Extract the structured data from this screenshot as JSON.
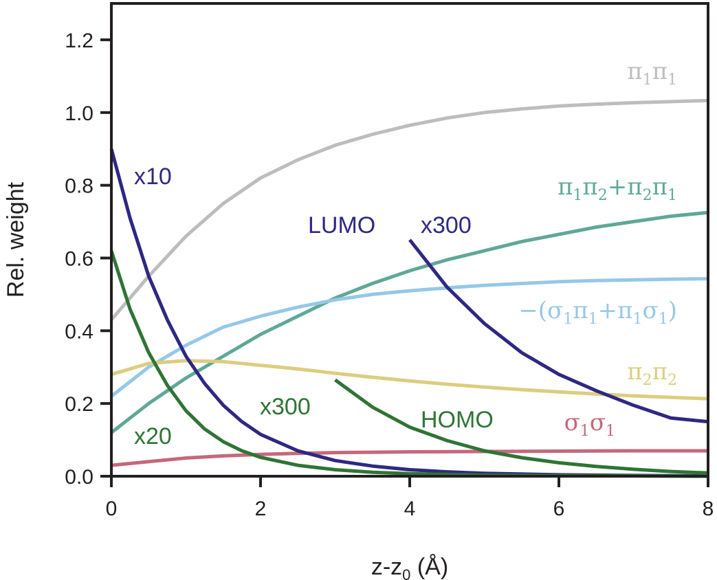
{
  "chart_data": {
    "type": "line",
    "title": "",
    "xlabel": {
      "main": "z-z",
      "sub": "0",
      "rest": " (Å)"
    },
    "ylabel": "Rel. weight",
    "xlim": [
      0,
      8
    ],
    "ylim": [
      0,
      1.3
    ],
    "xticks": [
      0,
      2,
      4,
      6,
      8
    ],
    "xtick_labels": [
      "0",
      "2",
      "4",
      "6",
      "8"
    ],
    "yticks": [
      0.0,
      0.2,
      0.4,
      0.6,
      0.8,
      1.0,
      1.2
    ],
    "ytick_labels": [
      "0.0",
      "0.2",
      "0.4",
      "0.6",
      "0.8",
      "1.0",
      "1.2"
    ],
    "grid": false,
    "series": [
      {
        "name": "π1π1",
        "color": "#bdbdbd",
        "x": [
          0,
          0.5,
          1,
          1.5,
          2,
          2.5,
          3,
          3.5,
          4,
          4.5,
          5,
          5.5,
          6,
          6.5,
          7,
          7.5,
          8
        ],
        "y": [
          0.43,
          0.55,
          0.66,
          0.75,
          0.82,
          0.87,
          0.91,
          0.94,
          0.965,
          0.985,
          1.0,
          1.01,
          1.018,
          1.023,
          1.027,
          1.03,
          1.033
        ]
      },
      {
        "name": "π1π2+π2π1",
        "color": "#5fa898",
        "x": [
          0,
          0.5,
          1,
          1.5,
          2,
          2.5,
          3,
          3.5,
          4,
          4.5,
          5,
          5.5,
          6,
          6.5,
          7,
          7.5,
          8
        ],
        "y": [
          0.12,
          0.2,
          0.27,
          0.33,
          0.39,
          0.44,
          0.49,
          0.53,
          0.565,
          0.595,
          0.62,
          0.645,
          0.665,
          0.685,
          0.7,
          0.715,
          0.725
        ]
      },
      {
        "name": "−(σ1π1+π1σ1)",
        "color": "#95c8e8",
        "x": [
          0,
          0.5,
          1,
          1.5,
          2,
          2.5,
          3,
          3.5,
          4,
          4.5,
          5,
          5.5,
          6,
          6.5,
          7,
          7.5,
          8
        ],
        "y": [
          0.22,
          0.3,
          0.36,
          0.41,
          0.44,
          0.465,
          0.485,
          0.5,
          0.51,
          0.518,
          0.525,
          0.53,
          0.535,
          0.538,
          0.54,
          0.542,
          0.543
        ]
      },
      {
        "name": "π2π2",
        "color": "#dccd7e",
        "x": [
          0,
          0.5,
          1,
          1.5,
          2,
          2.5,
          3,
          3.5,
          4,
          4.5,
          5,
          5.5,
          6,
          6.5,
          7,
          7.5,
          8
        ],
        "y": [
          0.28,
          0.31,
          0.318,
          0.315,
          0.305,
          0.295,
          0.283,
          0.272,
          0.262,
          0.253,
          0.245,
          0.238,
          0.232,
          0.226,
          0.221,
          0.217,
          0.213
        ]
      },
      {
        "name": "σ1σ1",
        "color": "#c4687a",
        "x": [
          0,
          0.5,
          1,
          1.5,
          2,
          2.5,
          3,
          3.5,
          4,
          5,
          6,
          7,
          8
        ],
        "y": [
          0.03,
          0.04,
          0.05,
          0.056,
          0.06,
          0.063,
          0.065,
          0.066,
          0.067,
          0.068,
          0.069,
          0.07,
          0.07
        ]
      },
      {
        "name": "LUMO x10",
        "color": "#2e2883",
        "x": [
          0,
          0.25,
          0.5,
          0.75,
          1,
          1.25,
          1.5,
          1.75,
          2,
          2.5,
          3,
          3.5,
          4,
          4.5,
          5,
          6,
          7,
          8
        ],
        "y": [
          0.9,
          0.71,
          0.55,
          0.43,
          0.33,
          0.255,
          0.195,
          0.15,
          0.115,
          0.07,
          0.043,
          0.028,
          0.018,
          0.012,
          0.008,
          0.004,
          0.002,
          0.001
        ]
      },
      {
        "name": "HOMO x20",
        "color": "#2f7435",
        "x": [
          0,
          0.25,
          0.5,
          0.75,
          1,
          1.25,
          1.5,
          1.75,
          2,
          2.5,
          3,
          3.5,
          4,
          5,
          6,
          7,
          8
        ],
        "y": [
          0.62,
          0.46,
          0.34,
          0.25,
          0.18,
          0.13,
          0.095,
          0.07,
          0.052,
          0.03,
          0.018,
          0.011,
          0.007,
          0.003,
          0.002,
          0.001,
          0.0
        ]
      },
      {
        "name": "LUMO x300",
        "color": "#2e2883",
        "x": [
          4.0,
          4.5,
          5.0,
          5.5,
          6.0,
          6.5,
          7.0,
          7.5,
          8.0
        ],
        "y": [
          0.65,
          0.52,
          0.42,
          0.34,
          0.28,
          0.235,
          0.195,
          0.16,
          0.15
        ]
      },
      {
        "name": "HOMO x300",
        "color": "#2f7435",
        "x": [
          3.0,
          3.5,
          4.0,
          4.5,
          5.0,
          5.5,
          6.0,
          6.5,
          7.0,
          7.5,
          8.0
        ],
        "y": [
          0.265,
          0.19,
          0.135,
          0.098,
          0.07,
          0.051,
          0.037,
          0.027,
          0.019,
          0.013,
          0.009
        ]
      }
    ],
    "annotations": {
      "x10": "x10",
      "lumo": "LUMO",
      "lumo_x300": "x300",
      "x20": "x20",
      "homo_x300": "x300",
      "homo": "HOMO"
    },
    "curve_labels": {
      "pi1pi1": {
        "p1": "π",
        "s1": "1",
        "p2": "π",
        "s2": "1"
      },
      "pi1pi2": {
        "p1": "π",
        "s1": "1",
        "p2": "π",
        "s2": "2",
        "plus": "+",
        "p3": "π",
        "s3": "2",
        "p4": "π",
        "s4": "1"
      },
      "sigpi": {
        "open": "−(",
        "p1": "σ",
        "s1": "1",
        "p2": "π",
        "s2": "1",
        "plus": "+",
        "p3": "π",
        "s3": "1",
        "p4": "σ",
        "s4": "1",
        "close": ")"
      },
      "pi2pi2": {
        "p1": "π",
        "s1": "2",
        "p2": "π",
        "s2": "2"
      },
      "sig1sig1": {
        "p1": "σ",
        "s1": "1",
        "p2": "σ",
        "s2": "1"
      }
    }
  }
}
